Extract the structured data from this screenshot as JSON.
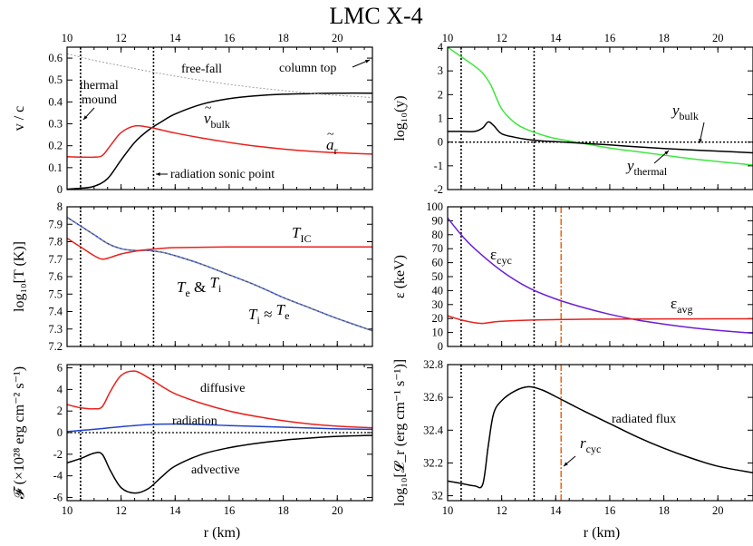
{
  "chart_data": {
    "title": "LMC X-4",
    "xlabel": "r (km)",
    "top_axis_ticks": [
      "10",
      "12",
      "14",
      "16",
      "18",
      "20"
    ],
    "colors": {
      "black": "#000000",
      "red": "#e8211c",
      "blue": "#2142c8",
      "green": "#3fe63f",
      "purple": "#6a1fd6",
      "orange": "#ee6a1a",
      "gray": "#a0a0a0"
    },
    "panels": [
      {
        "id": "velocity",
        "type": "line",
        "ylabel": "v / c",
        "xlim": [
          10,
          21.3
        ],
        "ylim": [
          0,
          0.65
        ],
        "xticks": [
          "10",
          "12",
          "14",
          "16",
          "18",
          "20"
        ],
        "yticks": [
          "0",
          "0.1",
          "0.2",
          "0.3",
          "0.4",
          "0.5",
          "0.6"
        ],
        "vlines": [
          10.5,
          13.2
        ],
        "series": [
          {
            "name": "v_bulk",
            "color": "black",
            "x": [
              10,
              10.5,
              11,
              11.5,
              12,
              12.5,
              13,
              13.5,
              14,
              15,
              16,
              17,
              18,
              19,
              20,
              21.3
            ],
            "y": [
              0.002,
              0.006,
              0.015,
              0.05,
              0.135,
              0.215,
              0.27,
              0.31,
              0.345,
              0.39,
              0.415,
              0.428,
              0.435,
              0.438,
              0.44,
              0.44
            ]
          },
          {
            "name": "a_r",
            "color": "red",
            "x": [
              10,
              10.5,
              11,
              11.3,
              11.6,
              12,
              12.5,
              13,
              13.5,
              14,
              15,
              16,
              17,
              18,
              19,
              20,
              21.3
            ],
            "y": [
              0.15,
              0.148,
              0.148,
              0.155,
              0.2,
              0.26,
              0.29,
              0.285,
              0.272,
              0.258,
              0.235,
              0.215,
              0.198,
              0.185,
              0.175,
              0.168,
              0.162
            ]
          },
          {
            "name": "free-fall",
            "color": "gray",
            "dashed": true,
            "x": [
              10,
              11,
              12,
              13,
              14,
              15,
              16,
              17,
              18,
              19,
              20,
              21.3
            ],
            "y": [
              0.62,
              0.59,
              0.565,
              0.54,
              0.518,
              0.498,
              0.48,
              0.465,
              0.452,
              0.44,
              0.43,
              0.42
            ]
          }
        ],
        "annotations": {
          "free_fall": "free-fall",
          "column_top": "column top",
          "thermal": "thermal",
          "mound": "mound",
          "v_bulk_sym": "v",
          "v_bulk_sub": "bulk",
          "a_r_sym": "a",
          "a_r_sub": "r",
          "sonic": "radiation sonic point"
        }
      },
      {
        "id": "y_param",
        "type": "line",
        "ylabel": "log₁₀(y)",
        "xlim": [
          10,
          21.3
        ],
        "ylim": [
          -2,
          4
        ],
        "xticks": [
          "10",
          "12",
          "14",
          "16",
          "18",
          "20"
        ],
        "yticks": [
          "-2",
          "-1",
          "0",
          "1",
          "2",
          "3",
          "4"
        ],
        "vlines": [
          10.5,
          13.2
        ],
        "hline": 0,
        "series": [
          {
            "name": "y_thermal",
            "color": "green",
            "x": [
              10,
              10.5,
              11,
              11.3,
              11.6,
              12,
              12.5,
              13,
              13.5,
              14,
              15,
              16,
              17,
              18,
              19,
              20,
              21.3
            ],
            "y": [
              4,
              3.6,
              3.2,
              2.9,
              2.4,
              1.4,
              0.8,
              0.5,
              0.3,
              0.15,
              -0.05,
              -0.25,
              -0.4,
              -0.55,
              -0.7,
              -0.82,
              -0.97
            ]
          },
          {
            "name": "y_bulk",
            "color": "black",
            "x": [
              10,
              10.5,
              11,
              11.3,
              11.5,
              11.7,
              12,
              12.5,
              13,
              13.5,
              14,
              15,
              16,
              17,
              18,
              19,
              20,
              21.3
            ],
            "y": [
              0.45,
              0.45,
              0.45,
              0.6,
              0.85,
              0.7,
              0.35,
              0.2,
              0.1,
              0.05,
              0.02,
              -0.05,
              -0.12,
              -0.2,
              -0.27,
              -0.33,
              -0.38,
              -0.45
            ]
          }
        ],
        "annotations": {
          "y_bulk_sym": "y",
          "y_bulk_sub": "bulk",
          "y_thermal_sym": "y",
          "y_thermal_sub": "thermal"
        }
      },
      {
        "id": "temperature",
        "type": "line",
        "ylabel": "log₁₀[T (K)]",
        "xlim": [
          10,
          21.3
        ],
        "ylim": [
          7.2,
          8
        ],
        "xticks": [
          "10",
          "12",
          "14",
          "16",
          "18",
          "20"
        ],
        "yticks": [
          "7.2",
          "7.3",
          "7.4",
          "7.5",
          "7.6",
          "7.7",
          "7.8",
          "7.9",
          "8"
        ],
        "vlines": [
          10.5,
          13.2
        ],
        "series": [
          {
            "name": "T_e & T_i",
            "color": "blue",
            "x": [
              10,
              10.5,
              11,
              11.5,
              12,
              12.5,
              13,
              13.5,
              14,
              15,
              16,
              17,
              18,
              19,
              20,
              21.3
            ],
            "y": [
              7.94,
              7.89,
              7.84,
              7.79,
              7.76,
              7.75,
              7.75,
              7.74,
              7.72,
              7.67,
              7.61,
              7.55,
              7.48,
              7.42,
              7.36,
              7.29
            ]
          },
          {
            "name": "T_IC",
            "color": "red",
            "x": [
              10,
              10.5,
              11,
              11.3,
              11.6,
              12,
              12.5,
              13,
              13.5,
              14,
              15,
              16,
              17,
              18,
              19,
              20,
              21.3
            ],
            "y": [
              7.82,
              7.77,
              7.72,
              7.7,
              7.71,
              7.73,
              7.745,
              7.755,
              7.762,
              7.766,
              7.768,
              7.77,
              7.77,
              7.77,
              7.77,
              7.77,
              7.77
            ]
          }
        ],
        "annotations": {
          "t_ic_sym": "T",
          "t_ic_sub": "IC",
          "te_ti_a": "T",
          "te_ti_a_sub": "e",
          "te_ti_amp": "&",
          "te_ti_b": "T",
          "te_ti_b_sub": "i",
          "ti_te_a": "T",
          "ti_te_a_sub": "i",
          "ti_te_approx": "≈",
          "ti_te_b": "T",
          "ti_te_b_sub": "e"
        }
      },
      {
        "id": "energy",
        "type": "line",
        "ylabel": "ε (keV)",
        "xlim": [
          10,
          21.3
        ],
        "ylim": [
          0,
          100
        ],
        "xticks": [
          "10",
          "12",
          "14",
          "16",
          "18",
          "20"
        ],
        "yticks": [
          "0",
          "10",
          "20",
          "30",
          "40",
          "50",
          "60",
          "70",
          "80",
          "90",
          "100"
        ],
        "vlines": [
          10.5,
          13.2
        ],
        "vline_orange": 14.2,
        "series": [
          {
            "name": "ε_cyc",
            "color": "purple",
            "x": [
              10,
              10.5,
              11,
              12,
              13,
              14,
              15,
              16,
              17,
              18,
              19,
              20,
              21.3
            ],
            "y": [
              92,
              80,
              70,
              54,
              42,
              34,
              28,
              23,
              19,
              16,
              13.5,
              11.5,
              9.5
            ]
          },
          {
            "name": "ε_avg",
            "color": "red",
            "x": [
              10,
              10.5,
              11,
              11.3,
              11.7,
              12,
              13,
              14,
              15,
              16,
              18,
              20,
              21.3
            ],
            "y": [
              22,
              19,
              17,
              16.5,
              17.5,
              18,
              18.8,
              19.2,
              19.5,
              19.6,
              19.7,
              19.8,
              19.8
            ]
          }
        ],
        "annotations": {
          "eps_cyc_sym": "ε",
          "eps_cyc_sub": "cyc",
          "eps_avg_sym": "ε",
          "eps_avg_sub": "avg"
        }
      },
      {
        "id": "flux",
        "type": "line",
        "ylabel": "𝓕 (×10²⁸ erg cm⁻² s⁻¹)",
        "xlim": [
          10,
          21.3
        ],
        "ylim": [
          -6.3,
          6.3
        ],
        "xticks": [
          "10",
          "12",
          "14",
          "16",
          "18",
          "20"
        ],
        "yticks": [
          "-6",
          "-4",
          "-2",
          "0",
          "2",
          "4",
          "6"
        ],
        "vlines": [
          10.5,
          13.2
        ],
        "hline": 0,
        "series": [
          {
            "name": "diffusive",
            "color": "red",
            "x": [
              10,
              10.5,
              11,
              11.3,
              11.6,
              12,
              12.5,
              13,
              13.5,
              14,
              15,
              16,
              17,
              18,
              19,
              20,
              21.3
            ],
            "y": [
              2.6,
              2.3,
              2.2,
              2.4,
              3.8,
              5.3,
              5.7,
              5.1,
              4.3,
              3.6,
              2.7,
              2.0,
              1.5,
              1.1,
              0.8,
              0.6,
              0.45
            ]
          },
          {
            "name": "radiation",
            "color": "blue",
            "x": [
              10,
              11,
              12,
              13,
              14,
              15,
              16,
              18,
              20,
              21.3
            ],
            "y": [
              0.1,
              0.3,
              0.55,
              0.75,
              0.8,
              0.75,
              0.65,
              0.5,
              0.35,
              0.3
            ]
          },
          {
            "name": "advective",
            "color": "black",
            "x": [
              10,
              10.5,
              11,
              11.3,
              11.6,
              12,
              12.5,
              13,
              13.5,
              14,
              15,
              16,
              17,
              18,
              19,
              20,
              21.3
            ],
            "y": [
              -2.8,
              -2.4,
              -1.9,
              -2.0,
              -3.5,
              -5.1,
              -5.6,
              -5.2,
              -4.1,
              -3.1,
              -2.0,
              -1.4,
              -1.0,
              -0.7,
              -0.5,
              -0.35,
              -0.25
            ]
          }
        ],
        "annotations": {
          "diffusive": "diffusive",
          "radiation": "radiation",
          "advective": "advective"
        }
      },
      {
        "id": "radiated_flux",
        "type": "line",
        "ylabel": "log₁₀[𝓛_r (erg cm⁻¹ s⁻¹)]",
        "xlim": [
          10,
          21.3
        ],
        "ylim": [
          31.97,
          32.8
        ],
        "xticks": [
          "10",
          "12",
          "14",
          "16",
          "18",
          "20"
        ],
        "yticks": [
          "32",
          "32.2",
          "32.4",
          "32.6",
          "32.8"
        ],
        "vlines": [
          10.5,
          13.2
        ],
        "vline_orange": 14.2,
        "series": [
          {
            "name": "radiated flux",
            "color": "black",
            "x": [
              10,
              10.5,
              11,
              11.3,
              11.5,
              11.7,
              12,
              12.5,
              13,
              13.5,
              14,
              15,
              16,
              17,
              18,
              19,
              20,
              21.3
            ],
            "y": [
              32.09,
              32.075,
              32.06,
              32.07,
              32.3,
              32.5,
              32.58,
              32.64,
              32.665,
              32.645,
              32.605,
              32.52,
              32.44,
              32.36,
              32.29,
              32.23,
              32.18,
              32.14
            ]
          }
        ],
        "annotations": {
          "radiated_flux": "radiated flux",
          "r_cyc_sym": "r",
          "r_cyc_sub": "cyc"
        }
      }
    ]
  }
}
